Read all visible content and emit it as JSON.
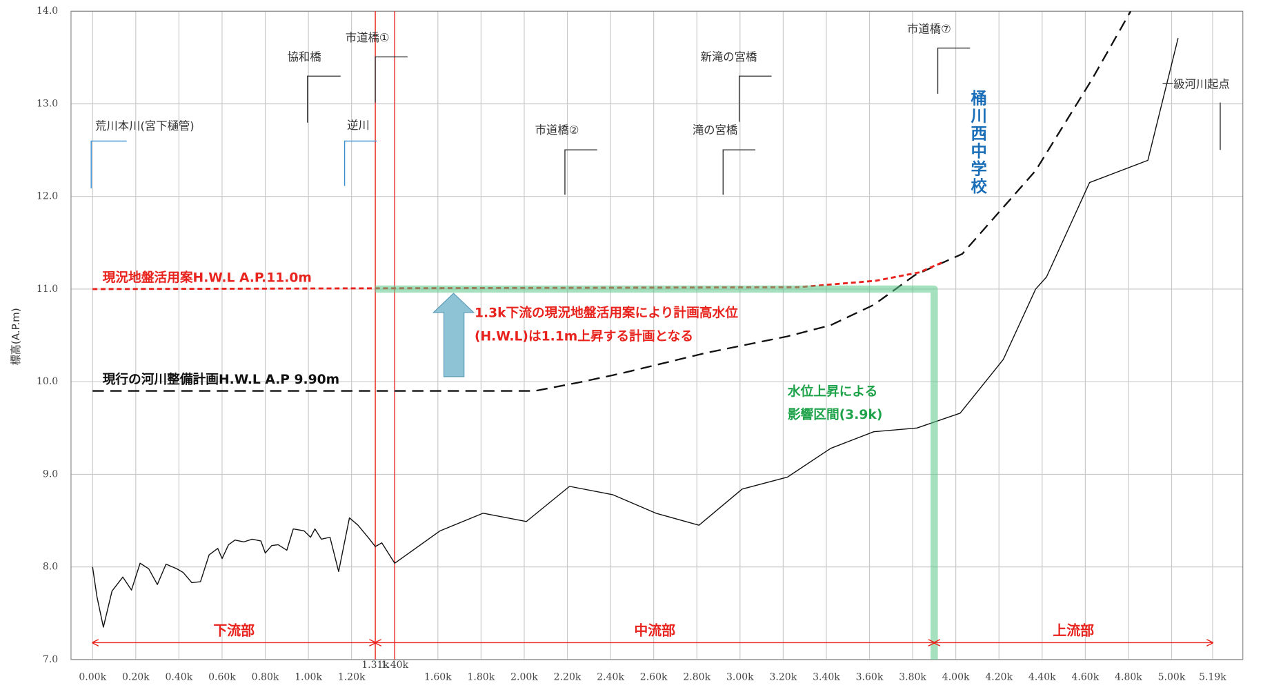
{
  "chart_data": {
    "type": "line",
    "y_label": "標高(A.P.m)",
    "xlim": [
      -0.1,
      5.33
    ],
    "ylim": [
      7.0,
      14.0
    ],
    "yticks": [
      {
        "value": 7,
        "label": "7.0"
      },
      {
        "value": 8,
        "label": "8.0"
      },
      {
        "value": 9,
        "label": "9.0"
      },
      {
        "value": 10,
        "label": "10.0"
      },
      {
        "value": 11,
        "label": "11.0"
      },
      {
        "value": 12,
        "label": "12.0"
      },
      {
        "value": 13,
        "label": "13.0"
      },
      {
        "value": 14,
        "label": "14.0"
      }
    ],
    "xticks": [
      {
        "value": 0,
        "label": "0.00k"
      },
      {
        "value": 0.2,
        "label": "0.20k"
      },
      {
        "value": 0.4,
        "label": "0.40k"
      },
      {
        "value": 0.6,
        "label": "0.60k"
      },
      {
        "value": 0.8,
        "label": "0.80k"
      },
      {
        "value": 1.0,
        "label": "1.00k"
      },
      {
        "value": 1.2,
        "label": "1.20k"
      },
      {
        "value": 1.31,
        "label": "1.31k"
      },
      {
        "value": 1.4,
        "label": "1.40k"
      },
      {
        "value": 1.6,
        "label": "1.60k"
      },
      {
        "value": 1.8,
        "label": "1.80k"
      },
      {
        "value": 2.0,
        "label": "2.00k"
      },
      {
        "value": 2.2,
        "label": "2.20k"
      },
      {
        "value": 2.4,
        "label": "2.40k"
      },
      {
        "value": 2.6,
        "label": "2.60k"
      },
      {
        "value": 2.8,
        "label": "2.80k"
      },
      {
        "value": 3.0,
        "label": "3.00k"
      },
      {
        "value": 3.2,
        "label": "3.20k"
      },
      {
        "value": 3.4,
        "label": "3.40k"
      },
      {
        "value": 3.6,
        "label": "3.60k"
      },
      {
        "value": 3.8,
        "label": "3.80k"
      },
      {
        "value": 4.0,
        "label": "4.00k"
      },
      {
        "value": 4.2,
        "label": "4.20k"
      },
      {
        "value": 4.4,
        "label": "4.40k"
      },
      {
        "value": 4.6,
        "label": "4.60k"
      },
      {
        "value": 4.8,
        "label": "4.80k"
      },
      {
        "value": 5.0,
        "label": "5.00k"
      },
      {
        "value": 5.19,
        "label": "5.19k"
      }
    ],
    "grid": true,
    "split_line": {
      "color": "#e8231e"
    },
    "series": [
      {
        "color": "#111111",
        "dash": "none",
        "width": 1.2,
        "x": [
          0,
          0.02,
          0.05,
          0.09,
          0.14,
          0.18,
          0.22,
          0.26,
          0.3,
          0.34,
          0.39,
          0.42,
          0.46,
          0.5,
          0.54,
          0.58,
          0.6,
          0.63,
          0.66,
          0.7,
          0.74,
          0.78,
          0.8,
          0.83,
          0.86,
          0.9,
          0.93,
          0.98,
          1.01,
          1.03,
          1.06,
          1.1,
          1.14,
          1.19,
          1.23,
          1.28,
          1.31,
          1.34,
          1.4,
          1.61,
          1.81,
          2.01,
          2.21,
          2.41,
          2.61,
          2.81,
          3.01,
          3.22,
          3.42,
          3.62,
          3.82,
          4.02,
          4.22,
          4.37,
          4.42,
          4.62,
          4.89,
          5.03
        ],
        "values": [
          8.0,
          7.68,
          7.35,
          7.74,
          7.89,
          7.75,
          8.04,
          7.98,
          7.81,
          8.03,
          7.98,
          7.94,
          7.83,
          7.84,
          8.13,
          8.2,
          8.09,
          8.24,
          8.29,
          8.27,
          8.3,
          8.28,
          8.15,
          8.23,
          8.24,
          8.18,
          8.41,
          8.39,
          8.32,
          8.41,
          8.3,
          8.32,
          7.95,
          8.53,
          8.45,
          8.31,
          8.22,
          8.26,
          8.04,
          8.39,
          8.58,
          8.49,
          8.87,
          8.78,
          8.58,
          8.45,
          8.84,
          8.97,
          9.28,
          9.46,
          9.5,
          9.66,
          10.24,
          11.0,
          11.13,
          12.15,
          12.39,
          13.71
        ]
      },
      {
        "name": "現行の河川整備計画H.W.L  A.P  9.90m",
        "color": "#111111",
        "dash": "14 8",
        "width": 2,
        "x": [
          0,
          2.05,
          2.25,
          2.45,
          2.84,
          3.22,
          3.42,
          3.62,
          3.81,
          4.03,
          4.37,
          4.63,
          4.81
        ],
        "values": [
          9.9,
          9.9,
          9.99,
          10.09,
          10.31,
          10.49,
          10.61,
          10.83,
          11.15,
          11.38,
          12.28,
          13.26,
          14.0
        ]
      },
      {
        "name": "現況地盤活用案H.W.L  A.P.11.0m",
        "color": "#e8231e",
        "dash": "6 4",
        "width": 2.5,
        "x": [
          0,
          3.27,
          3.63,
          3.83,
          3.94
        ],
        "values": [
          11.0,
          11.02,
          11.09,
          11.18,
          11.29
        ]
      },
      {
        "color": "#5cc98a",
        "dash": "none",
        "width": 9,
        "opacity": 0.55,
        "x": [
          1.31,
          3.9,
          3.9
        ],
        "values": [
          11.0,
          11.0,
          7.0
        ]
      }
    ],
    "sections": [
      {
        "label": "下流部",
        "from": 0,
        "to": 1.31
      },
      {
        "label": "中流部",
        "from": 1.31,
        "to": 3.9
      },
      {
        "label": "上流部",
        "from": 3.9,
        "to": 5.19
      }
    ],
    "annotations": [
      "荒川本川(宮下樋管)",
      "協和橋",
      "市道橋①",
      "逆川",
      "市道橋②",
      "新滝の宮橋",
      "滝の宮橋",
      "市道橋⑦",
      "一級河川起点"
    ],
    "school": "桶川西中学校",
    "callout": [
      "1.3k下流の現況地盤活用案により計画高水位",
      "(H.W.L)は1.1m上昇する計画となる"
    ],
    "impact": [
      "水位上昇による",
      "影響区間(3.9k)"
    ]
  }
}
